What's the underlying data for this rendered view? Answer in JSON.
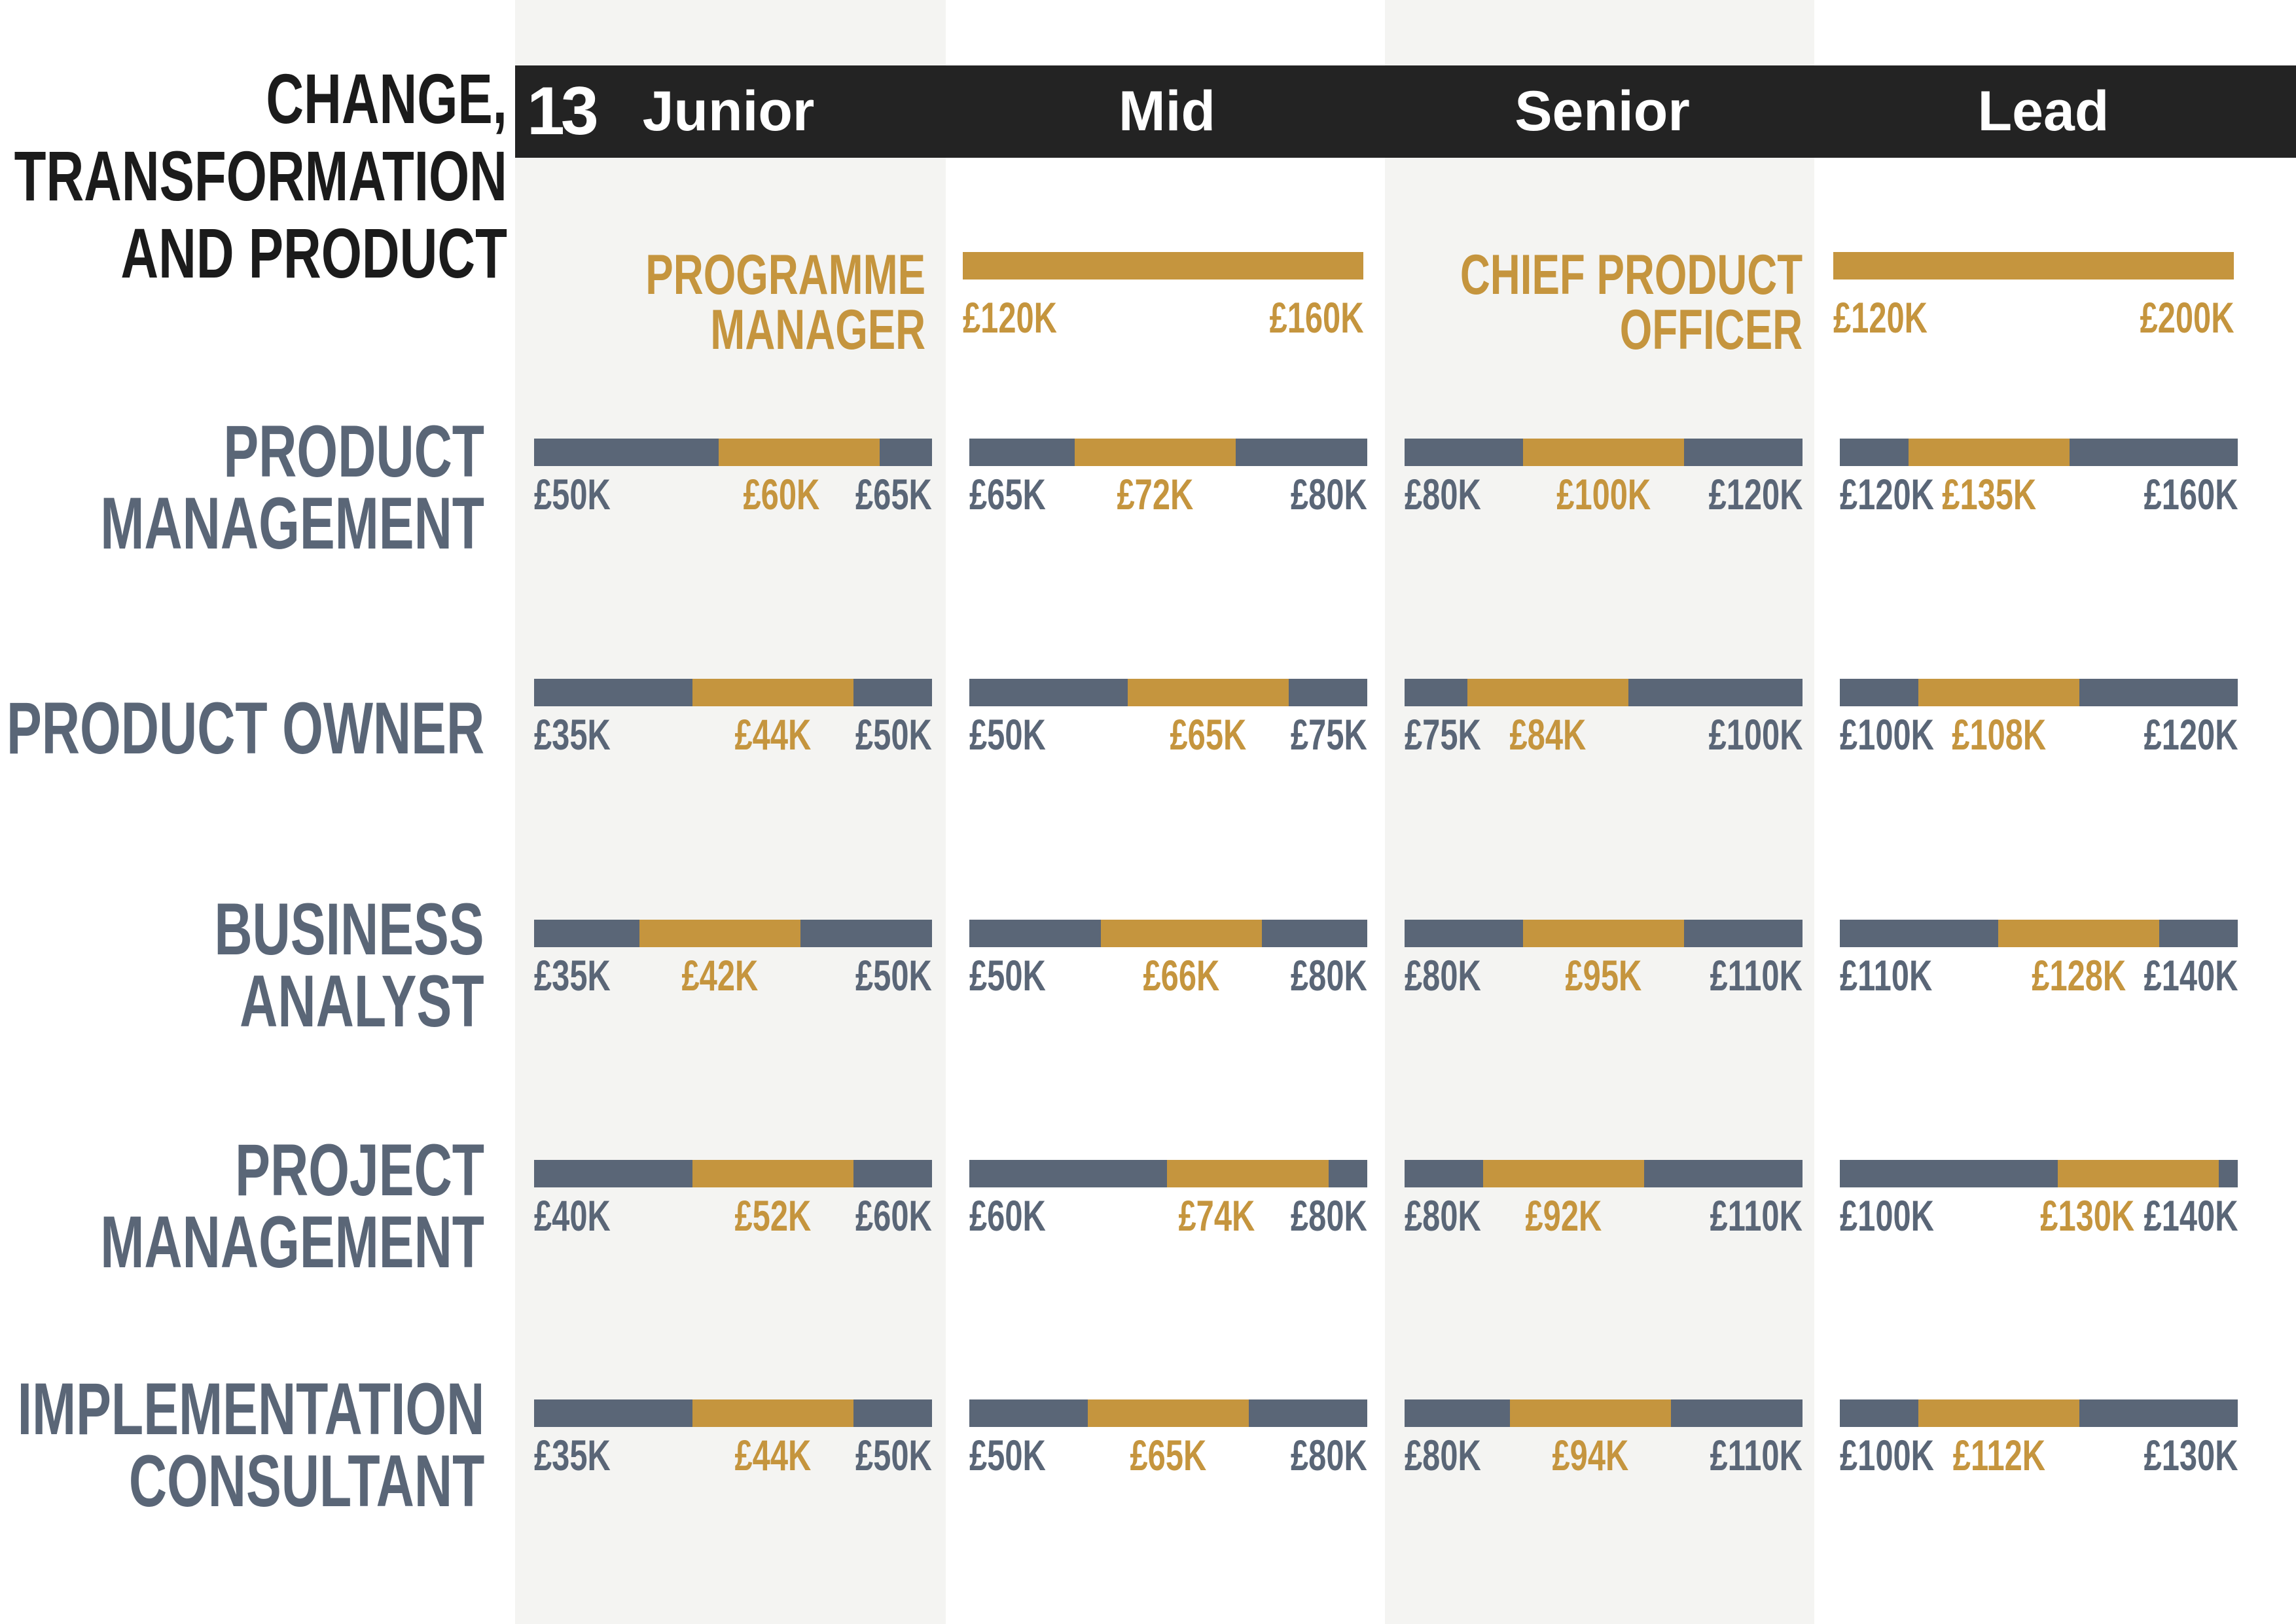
{
  "page_number": "13",
  "title_lines": [
    "CHANGE,",
    "TRANSFORMATION",
    "AND PRODUCT"
  ],
  "columns": [
    "Junior",
    "Mid",
    "Senior",
    "Lead"
  ],
  "colors": {
    "grey": "#5a6677",
    "gold": "#c5953e",
    "header": "#232323",
    "column_shade": "#f4f4f2",
    "title": "#1b1b1b"
  },
  "chart_data": {
    "type": "table",
    "exec_roles": [
      {
        "title_lines": [
          "PROGRAMME",
          "MANAGER"
        ],
        "min": 120,
        "max": 160,
        "min_label": "£120K",
        "max_label": "£160K"
      },
      {
        "title_lines": [
          "CHIEF PRODUCT",
          "OFFICER"
        ],
        "min": 120,
        "max": 200,
        "min_label": "£120K",
        "max_label": "£200K"
      }
    ],
    "roles": [
      {
        "label_lines": [
          "PRODUCT",
          "MANAGEMENT"
        ],
        "ranges": [
          {
            "min": 50,
            "typical": 60,
            "max": 65,
            "labels": [
              "£50K",
              "£60K",
              "£65K"
            ]
          },
          {
            "min": 65,
            "typical": 72,
            "max": 80,
            "labels": [
              "£65K",
              "£72K",
              "£80K"
            ]
          },
          {
            "min": 80,
            "typical": 100,
            "max": 120,
            "labels": [
              "£80K",
              "£100K",
              "£120K"
            ]
          },
          {
            "min": 120,
            "typical": 135,
            "max": 160,
            "labels": [
              "£120K",
              "£135K",
              "£160K"
            ]
          }
        ]
      },
      {
        "label_lines": [
          "PRODUCT OWNER"
        ],
        "ranges": [
          {
            "min": 35,
            "typical": 44,
            "max": 50,
            "labels": [
              "£35K",
              "£44K",
              "£50K"
            ]
          },
          {
            "min": 50,
            "typical": 65,
            "max": 75,
            "labels": [
              "£50K",
              "£65K",
              "£75K"
            ]
          },
          {
            "min": 75,
            "typical": 84,
            "max": 100,
            "labels": [
              "£75K",
              "£84K",
              "£100K"
            ]
          },
          {
            "min": 100,
            "typical": 108,
            "max": 120,
            "labels": [
              "£100K",
              "£108K",
              "£120K"
            ]
          }
        ]
      },
      {
        "label_lines": [
          "BUSINESS",
          "ANALYST"
        ],
        "ranges": [
          {
            "min": 35,
            "typical": 42,
            "max": 50,
            "labels": [
              "£35K",
              "£42K",
              "£50K"
            ]
          },
          {
            "min": 50,
            "typical": 66,
            "max": 80,
            "labels": [
              "£50K",
              "£66K",
              "£80K"
            ]
          },
          {
            "min": 80,
            "typical": 95,
            "max": 110,
            "labels": [
              "£80K",
              "£95K",
              "£110K"
            ]
          },
          {
            "min": 110,
            "typical": 128,
            "max": 140,
            "labels": [
              "£110K",
              "£128K",
              "£140K"
            ]
          }
        ]
      },
      {
        "label_lines": [
          "PROJECT",
          "MANAGEMENT"
        ],
        "ranges": [
          {
            "min": 40,
            "typical": 52,
            "max": 60,
            "labels": [
              "£40K",
              "£52K",
              "£60K"
            ]
          },
          {
            "min": 60,
            "typical": 74,
            "max": 80,
            "labels": [
              "£60K",
              "£74K",
              "£80K"
            ]
          },
          {
            "min": 80,
            "typical": 92,
            "max": 110,
            "labels": [
              "£80K",
              "£92K",
              "£110K"
            ]
          },
          {
            "min": 100,
            "typical": 130,
            "max": 140,
            "labels": [
              "£100K",
              "£130K",
              "£140K"
            ]
          }
        ]
      },
      {
        "label_lines": [
          "IMPLEMENTATION",
          "CONSULTANT"
        ],
        "ranges": [
          {
            "min": 35,
            "typical": 44,
            "max": 50,
            "labels": [
              "£35K",
              "£44K",
              "£50K"
            ]
          },
          {
            "min": 50,
            "typical": 65,
            "max": 80,
            "labels": [
              "£50K",
              "£65K",
              "£80K"
            ]
          },
          {
            "min": 80,
            "typical": 94,
            "max": 110,
            "labels": [
              "£80K",
              "£94K",
              "£110K"
            ]
          },
          {
            "min": 100,
            "typical": 112,
            "max": 130,
            "labels": [
              "£100K",
              "£112K",
              "£130K"
            ]
          }
        ]
      }
    ]
  }
}
